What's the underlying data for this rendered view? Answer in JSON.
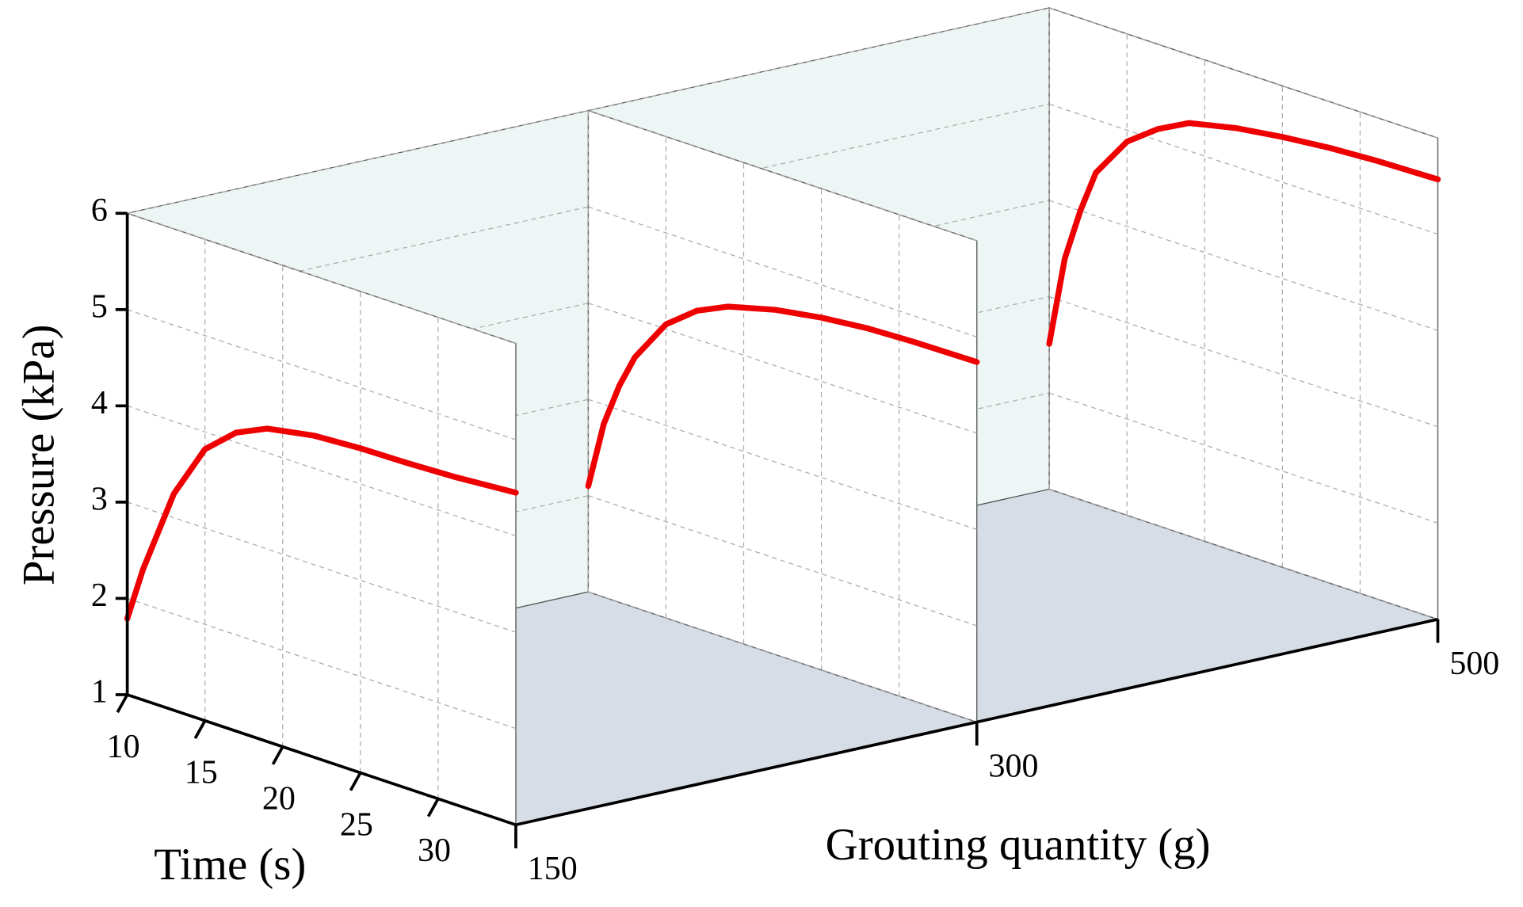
{
  "chart_data": {
    "type": "line3d",
    "x_label": "Time (s)",
    "y_label": "Pressure (kPa)",
    "z_label": "Grouting quantity (g)",
    "x": [
      10,
      11,
      12,
      13,
      15,
      17,
      19,
      22,
      25,
      28,
      31,
      35
    ],
    "z_categories": [
      "150",
      "300",
      "500"
    ],
    "series": [
      {
        "color": "#ee0000",
        "values": [
          1.79,
          2.35,
          2.8,
          3.25,
          3.82,
          4.1,
          4.25,
          4.34,
          4.37,
          4.38,
          4.4,
          4.45
        ]
      },
      {
        "color": "#ee0000",
        "values": [
          2.1,
          2.8,
          3.25,
          3.6,
          4.05,
          4.3,
          4.45,
          4.58,
          4.66,
          4.71,
          4.73,
          4.74
        ]
      },
      {
        "color": "#ee0000",
        "values": [
          2.51,
          3.45,
          4.0,
          4.45,
          4.88,
          5.12,
          5.29,
          5.4,
          5.47,
          5.52,
          5.55,
          5.57
        ]
      }
    ],
    "xlim": [
      10,
      35
    ],
    "xticks": [
      10,
      15,
      20,
      25,
      30
    ],
    "ylim": [
      1,
      6
    ],
    "yticks": [
      1,
      2,
      3,
      4,
      5,
      6
    ],
    "grid": true
  }
}
